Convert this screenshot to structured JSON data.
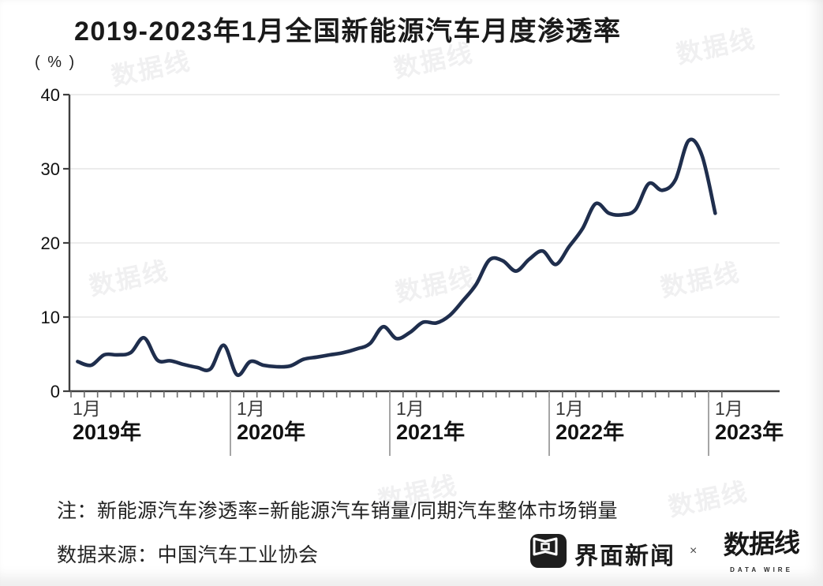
{
  "chart_data": {
    "type": "line",
    "title": "2019-2023年1月全国新能源汽车月度渗透率",
    "unit_label": "( % )",
    "ylim": [
      0,
      40
    ],
    "y_ticks": [
      "0",
      "10",
      "20",
      "30",
      "40"
    ],
    "grid": "horizontal-light",
    "legend_position": "none",
    "x_year_labels": [
      {
        "month": "1月",
        "year": "2019年"
      },
      {
        "month": "1月",
        "year": "2020年"
      },
      {
        "month": "1月",
        "year": "2021年"
      },
      {
        "month": "1月",
        "year": "2022年"
      },
      {
        "month": "1月",
        "year": "2023年"
      }
    ],
    "x": [
      "2019-01",
      "2019-02",
      "2019-03",
      "2019-04",
      "2019-05",
      "2019-06",
      "2019-07",
      "2019-08",
      "2019-09",
      "2019-10",
      "2019-11",
      "2019-12",
      "2020-01",
      "2020-02",
      "2020-03",
      "2020-04",
      "2020-05",
      "2020-06",
      "2020-07",
      "2020-08",
      "2020-09",
      "2020-10",
      "2020-11",
      "2020-12",
      "2021-01",
      "2021-02",
      "2021-03",
      "2021-04",
      "2021-05",
      "2021-06",
      "2021-07",
      "2021-08",
      "2021-09",
      "2021-10",
      "2021-11",
      "2021-12",
      "2022-01",
      "2022-02",
      "2022-03",
      "2022-04",
      "2022-05",
      "2022-06",
      "2022-07",
      "2022-08",
      "2022-09",
      "2022-10",
      "2022-11",
      "2022-12",
      "2023-01"
    ],
    "series": [
      {
        "name": "新能源汽车月度渗透率",
        "values": [
          4.0,
          3.5,
          4.9,
          4.9,
          5.2,
          7.2,
          4.2,
          4.1,
          3.6,
          3.2,
          3.0,
          6.2,
          2.2,
          4.0,
          3.5,
          3.3,
          3.4,
          4.3,
          4.6,
          4.9,
          5.2,
          5.7,
          6.4,
          8.7,
          7.1,
          7.9,
          9.3,
          9.2,
          10.2,
          12.2,
          14.4,
          17.7,
          17.6,
          16.2,
          17.8,
          18.9,
          17.1,
          19.5,
          21.9,
          25.3,
          24.0,
          23.8,
          24.5,
          28.0,
          27.1,
          28.5,
          33.8,
          31.8,
          24.0
        ]
      }
    ]
  },
  "footer": {
    "note": "注：新能源汽车渗透率=新能源汽车销量/同期汽车整体市场销量",
    "source": "数据来源：中国汽车工业协会"
  },
  "branding": {
    "jiemian_label": "界面新闻",
    "separator": "×",
    "datawire_cn": "数据线",
    "datawire_en": "DATA WIRE"
  },
  "colors": {
    "line": "#1f2e4d",
    "grid": "#ececec",
    "axis": "#3f3f3f",
    "month_tick": "#6a6a6a",
    "year_divider": "#9b9b9b"
  }
}
